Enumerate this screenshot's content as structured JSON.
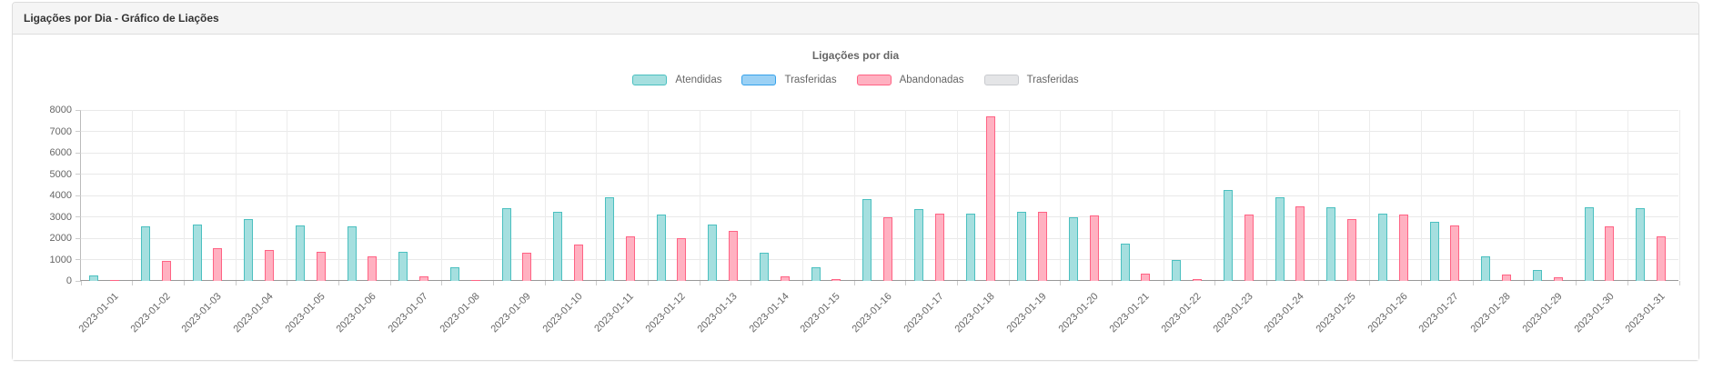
{
  "panel": {
    "title": "Ligações por Dia - Gráfico de Liações"
  },
  "chart_data": {
    "type": "bar",
    "title": "Ligações por dia",
    "xlabel": "",
    "ylabel": "",
    "ylim": [
      0,
      8000
    ],
    "ytick_step": 1000,
    "grid": true,
    "legend_position": "top",
    "categories": [
      "2023-01-01",
      "2023-01-02",
      "2023-01-03",
      "2023-01-04",
      "2023-01-05",
      "2023-01-06",
      "2023-01-07",
      "2023-01-08",
      "2023-01-09",
      "2023-01-10",
      "2023-01-11",
      "2023-01-12",
      "2023-01-13",
      "2023-01-14",
      "2023-01-15",
      "2023-01-16",
      "2023-01-17",
      "2023-01-18",
      "2023-01-19",
      "2023-01-20",
      "2023-01-21",
      "2023-01-22",
      "2023-01-23",
      "2023-01-24",
      "2023-01-25",
      "2023-01-26",
      "2023-01-27",
      "2023-01-28",
      "2023-01-29",
      "2023-01-30",
      "2023-01-31"
    ],
    "series": [
      {
        "name": "Atendidas",
        "fill": "#a5dfdf",
        "border": "#4bc0c0",
        "values": [
          250,
          2550,
          2650,
          2900,
          2600,
          2550,
          1350,
          650,
          3400,
          3250,
          3900,
          3100,
          2650,
          1300,
          650,
          3850,
          3350,
          3150,
          3250,
          3000,
          1750,
          1000,
          4250,
          3900,
          3450,
          3150,
          2750,
          1150,
          500,
          3450,
          3400
        ]
      },
      {
        "name": "Trasferidas",
        "fill": "#9bd1f5",
        "border": "#36a2eb",
        "values": [
          0,
          0,
          0,
          0,
          0,
          0,
          0,
          0,
          0,
          0,
          0,
          0,
          0,
          0,
          0,
          0,
          0,
          0,
          0,
          0,
          0,
          0,
          0,
          0,
          0,
          0,
          0,
          0,
          0,
          0,
          0
        ]
      },
      {
        "name": "Abandonadas",
        "fill": "#ffb1c1",
        "border": "#ff6384",
        "values": [
          60,
          950,
          1550,
          1450,
          1350,
          1150,
          200,
          60,
          1300,
          1700,
          2100,
          2000,
          2350,
          200,
          100,
          3000,
          3150,
          7700,
          3250,
          3050,
          350,
          100,
          3100,
          3500,
          2900,
          3100,
          2600,
          300,
          150,
          2550,
          2100
        ]
      },
      {
        "name": "Trasferidas",
        "fill": "#e4e5e7",
        "border": "#c9cbcf",
        "values": [
          0,
          0,
          0,
          0,
          0,
          0,
          0,
          0,
          0,
          0,
          0,
          0,
          0,
          0,
          0,
          0,
          0,
          0,
          0,
          0,
          0,
          0,
          0,
          0,
          0,
          0,
          0,
          0,
          0,
          0,
          0
        ]
      }
    ]
  }
}
